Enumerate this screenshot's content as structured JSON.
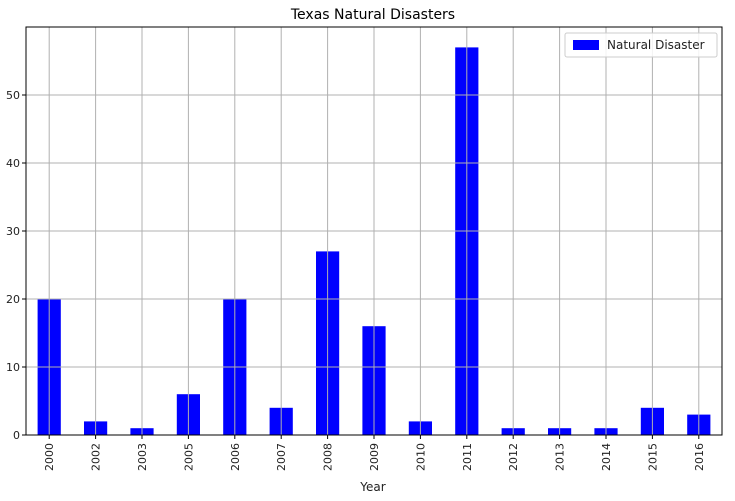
{
  "chart_data": {
    "type": "bar",
    "title": "Texas Natural Disasters",
    "xlabel": "Year",
    "ylabel": "",
    "categories": [
      "2000",
      "2002",
      "2003",
      "2005",
      "2006",
      "2007",
      "2008",
      "2009",
      "2010",
      "2011",
      "2012",
      "2013",
      "2014",
      "2015",
      "2016"
    ],
    "series": [
      {
        "name": "Natural Disaster",
        "color": "#0000ff",
        "values": [
          20,
          2,
          1,
          6,
          20,
          4,
          27,
          16,
          2,
          57,
          1,
          1,
          1,
          4,
          3
        ]
      }
    ],
    "ylim": [
      0,
      60
    ],
    "yticks": [
      0,
      10,
      20,
      30,
      40,
      50
    ],
    "grid": true,
    "legend_position": "top-right"
  }
}
